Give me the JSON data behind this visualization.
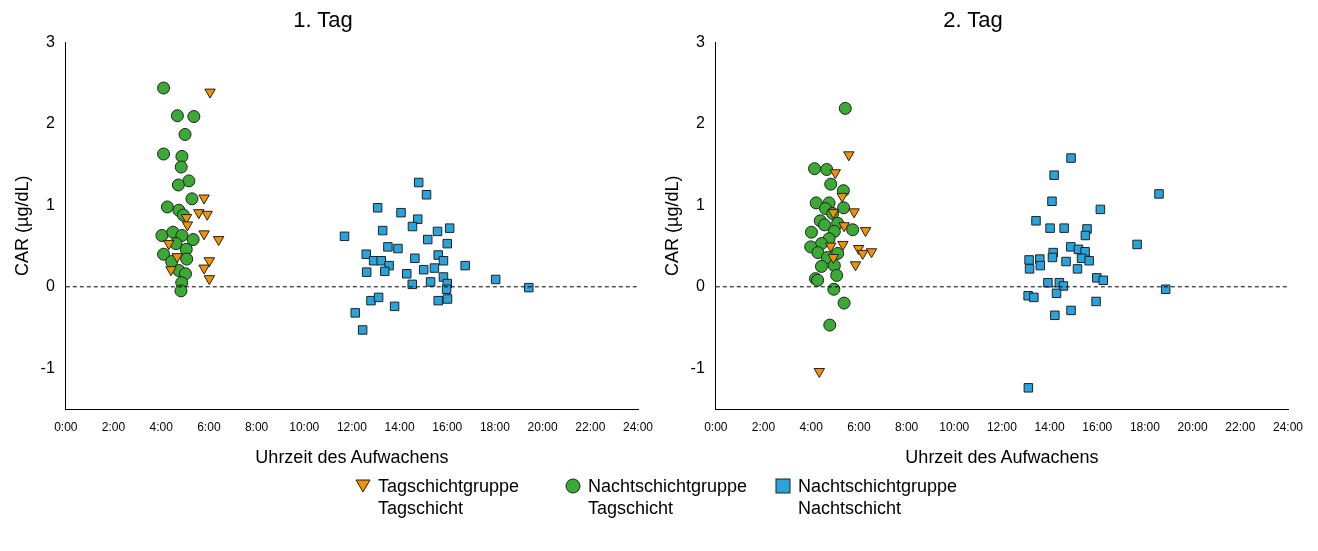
{
  "chart_data": [
    {
      "type": "scatter",
      "title": "1. Tag",
      "xlabel": "Uhrzeit des Aufwachens",
      "ylabel": "CAR (µg/dL)",
      "xlim": [
        0,
        24
      ],
      "xticks": [
        {
          "value": 0,
          "label": "0:00"
        },
        {
          "value": 2,
          "label": "2:00"
        },
        {
          "value": 4,
          "label": "4:00"
        },
        {
          "value": 6,
          "label": "6:00"
        },
        {
          "value": 8,
          "label": "8:00"
        },
        {
          "value": 10,
          "label": "10:00"
        },
        {
          "value": 12,
          "label": "12:00"
        },
        {
          "value": 14,
          "label": "14:00"
        },
        {
          "value": 16,
          "label": "16:00"
        },
        {
          "value": 18,
          "label": "18:00"
        },
        {
          "value": 20,
          "label": "20:00"
        },
        {
          "value": 22,
          "label": "22:00"
        },
        {
          "value": 24,
          "label": "24:00"
        }
      ],
      "ylim": [
        -1.5,
        3
      ],
      "yticks": [
        -1,
        0,
        1,
        2,
        3
      ],
      "grid": false,
      "legend": "bottom",
      "ref_lines": [
        {
          "axis": "y",
          "value": 0,
          "color": "#000000",
          "line_style": "dashed"
        }
      ],
      "series": [
        {
          "name": "Tagschichtgruppe Tagschicht",
          "color": "#f39200",
          "marker": "triangle",
          "x": [
            6.05,
            5.8,
            5.58,
            5.93,
            5.06,
            5.1,
            5.8,
            6.41,
            4.32,
            4.67,
            6.02,
            5.8,
            4.41,
            6.02
          ],
          "values": [
            2.39,
            1.09,
            0.91,
            0.89,
            0.85,
            0.76,
            0.65,
            0.58,
            0.53,
            0.37,
            0.32,
            0.23,
            0.21,
            0.1
          ]
        },
        {
          "name": "Nachtschichtgruppe Tagschicht",
          "color": "#3aaa35",
          "marker": "circle",
          "x": [
            4.1,
            4.68,
            5.37,
            5.0,
            4.1,
            4.87,
            4.84,
            5.16,
            4.72,
            5.29,
            4.26,
            4.74,
            4.93,
            4.03,
            4.49,
            4.87,
            5.34,
            4.62,
            5.05,
            4.1,
            5.07,
            4.44,
            4.74,
            5.02,
            4.86,
            4.83
          ],
          "values": [
            2.44,
            2.1,
            2.09,
            1.87,
            1.63,
            1.6,
            1.47,
            1.3,
            1.25,
            1.08,
            0.98,
            0.94,
            0.88,
            0.63,
            0.67,
            0.63,
            0.58,
            0.53,
            0.46,
            0.4,
            0.34,
            0.31,
            0.2,
            0.16,
            0.05,
            -0.05
          ]
        },
        {
          "name": "Nachtschichtgruppe Nachtschicht",
          "color": "#29a3dc",
          "marker": "square",
          "x": [
            14.8,
            15.13,
            13.08,
            14.06,
            14.76,
            14.54,
            13.29,
            15.59,
            16.1,
            11.69,
            15.18,
            16.0,
            13.51,
            13.93,
            12.6,
            15.62,
            14.64,
            15.84,
            12.91,
            13.23,
            13.56,
            16.75,
            12.62,
            13.38,
            14.3,
            15.01,
            15.46,
            15.84,
            14.53,
            15.3,
            16.0,
            18.03,
            15.97,
            19.42,
            16.01,
            15.62,
            12.8,
            13.12,
            13.79,
            12.14,
            12.45
          ],
          "values": [
            1.28,
            1.13,
            0.97,
            0.91,
            0.83,
            0.74,
            0.69,
            0.68,
            0.72,
            0.62,
            0.58,
            0.53,
            0.49,
            0.47,
            0.4,
            0.39,
            0.35,
            0.32,
            0.32,
            0.32,
            0.26,
            0.26,
            0.18,
            0.19,
            0.16,
            0.21,
            0.23,
            0.12,
            0.03,
            0.06,
            0.04,
            0.09,
            -0.03,
            -0.01,
            -0.15,
            -0.17,
            -0.17,
            -0.13,
            -0.24,
            -0.32,
            -0.53
          ]
        }
      ]
    },
    {
      "type": "scatter",
      "title": "2. Tag",
      "xlabel": "Uhrzeit des Aufwachens",
      "ylabel": "CAR (µg/dL)",
      "xlim": [
        0,
        24
      ],
      "xticks": [
        {
          "value": 0,
          "label": "0:00"
        },
        {
          "value": 2,
          "label": "2:00"
        },
        {
          "value": 4,
          "label": "4:00"
        },
        {
          "value": 6,
          "label": "6:00"
        },
        {
          "value": 8,
          "label": "8:00"
        },
        {
          "value": 10,
          "label": "10:00"
        },
        {
          "value": 12,
          "label": "12:00"
        },
        {
          "value": 14,
          "label": "14:00"
        },
        {
          "value": 16,
          "label": "16:00"
        },
        {
          "value": 18,
          "label": "18:00"
        },
        {
          "value": 20,
          "label": "20:00"
        },
        {
          "value": 22,
          "label": "22:00"
        },
        {
          "value": 24,
          "label": "24:00"
        }
      ],
      "ylim": [
        -1.5,
        3
      ],
      "yticks": [
        -1,
        0,
        1,
        2,
        3
      ],
      "grid": false,
      "ref_lines": [
        {
          "axis": "y",
          "value": 0,
          "color": "#000000",
          "line_style": "dashed"
        }
      ],
      "series": [
        {
          "color": "#f39200",
          "marker": "triangle",
          "x": [
            5.58,
            5.01,
            5.3,
            4.93,
            5.8,
            5.38,
            6.28,
            4.82,
            5.33,
            5.99,
            6.53,
            6.16,
            4.93,
            5.86,
            4.34
          ],
          "values": [
            1.62,
            1.4,
            1.11,
            0.91,
            0.92,
            0.75,
            0.69,
            0.5,
            0.52,
            0.47,
            0.43,
            0.41,
            0.36,
            0.27,
            -1.04
          ]
        },
        {
          "color": "#3aaa35",
          "marker": "circle",
          "x": [
            5.43,
            4.14,
            4.65,
            4.82,
            5.35,
            4.21,
            4.75,
            4.6,
            5.36,
            4.9,
            4.38,
            4.56,
            5.11,
            5.74,
            4.01,
            4.97,
            4.75,
            4.43,
            3.98,
            4.28,
            5.11,
            4.68,
            4.43,
            4.97,
            5.07,
            4.18,
            4.27,
            4.95,
            5.38,
            4.78
          ],
          "values": [
            2.19,
            1.45,
            1.44,
            1.26,
            1.18,
            1.03,
            1.03,
            0.96,
            0.97,
            0.9,
            0.81,
            0.76,
            0.78,
            0.7,
            0.67,
            0.68,
            0.59,
            0.53,
            0.49,
            0.42,
            0.41,
            0.36,
            0.25,
            0.26,
            0.14,
            0.1,
            0.08,
            -0.03,
            -0.2,
            -0.47
          ]
        },
        {
          "color": "#29a3dc",
          "marker": "square",
          "x": [
            14.9,
            14.19,
            18.59,
            14.1,
            16.13,
            13.43,
            14.02,
            14.61,
            15.57,
            15.5,
            17.67,
            14.89,
            15.21,
            15.49,
            14.15,
            13.14,
            13.59,
            14.12,
            14.69,
            15.34,
            15.66,
            13.61,
            13.16,
            15.17,
            15.98,
            16.25,
            13.93,
            14.41,
            14.58,
            14.29,
            18.87,
            13.1,
            13.34,
            15.95,
            14.9,
            14.22,
            13.11
          ],
          "values": [
            1.58,
            1.37,
            1.14,
            1.05,
            0.95,
            0.81,
            0.72,
            0.72,
            0.71,
            0.63,
            0.52,
            0.49,
            0.46,
            0.43,
            0.42,
            0.33,
            0.34,
            0.36,
            0.31,
            0.35,
            0.32,
            0.26,
            0.22,
            0.22,
            0.11,
            0.08,
            0.05,
            0.05,
            0.01,
            -0.08,
            -0.03,
            -0.11,
            -0.13,
            -0.18,
            -0.29,
            -0.35,
            -1.24
          ]
        }
      ]
    }
  ]
}
